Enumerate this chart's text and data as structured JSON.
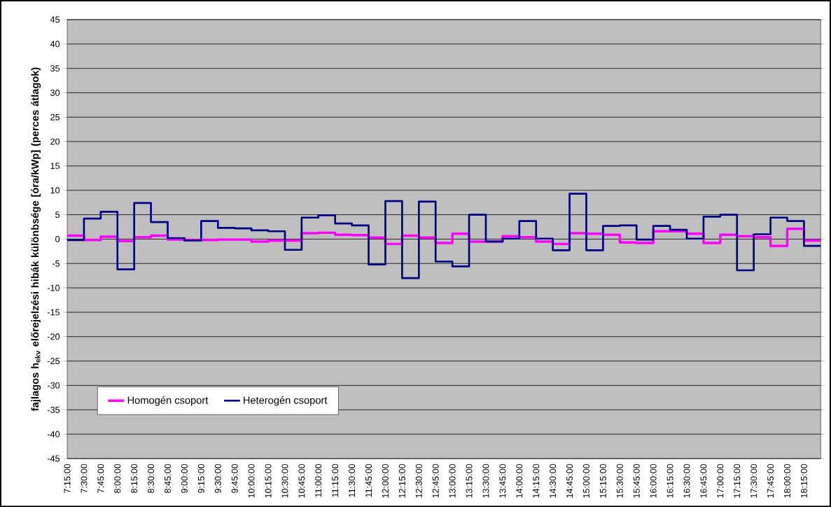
{
  "chart_data": {
    "type": "step",
    "ylabel": "fajlagos h$_{ekv}$ előrejelzési hibák különbsége  [óra/kWp] (perces átlagok)",
    "x": [
      7.25,
      7.5,
      7.75,
      8.0,
      8.25,
      8.5,
      8.75,
      9.0,
      9.25,
      9.5,
      9.75,
      10.0,
      10.25,
      10.5,
      10.75,
      11.0,
      11.25,
      11.5,
      11.75,
      12.0,
      12.25,
      12.5,
      12.75,
      13.0,
      13.25,
      13.5,
      13.75,
      14.0,
      14.25,
      14.5,
      14.75,
      15.0,
      15.25,
      15.5,
      15.75,
      16.0,
      16.25,
      16.5,
      16.75,
      17.0,
      17.25,
      17.5,
      17.75,
      18.0,
      18.25,
      18.5
    ],
    "xlim": [
      7.25,
      18.5
    ],
    "xticks": [
      {
        "value": 7.25,
        "label": "7:15:00"
      },
      {
        "value": 7.5,
        "label": "7:30:00"
      },
      {
        "value": 7.75,
        "label": "7:45:00"
      },
      {
        "value": 8.0,
        "label": "8:00:00"
      },
      {
        "value": 8.25,
        "label": "8:15:00"
      },
      {
        "value": 8.5,
        "label": "8:30:00"
      },
      {
        "value": 8.75,
        "label": "8:45:00"
      },
      {
        "value": 9.0,
        "label": "9:00:00"
      },
      {
        "value": 9.25,
        "label": "9:15:00"
      },
      {
        "value": 9.5,
        "label": "9:30:00"
      },
      {
        "value": 9.75,
        "label": "9:45:00"
      },
      {
        "value": 10.0,
        "label": "10:00:00"
      },
      {
        "value": 10.25,
        "label": "10:15:00"
      },
      {
        "value": 10.5,
        "label": "10:30:00"
      },
      {
        "value": 10.75,
        "label": "10:45:00"
      },
      {
        "value": 11.0,
        "label": "11:00:00"
      },
      {
        "value": 11.25,
        "label": "11:15:00"
      },
      {
        "value": 11.5,
        "label": "11:30:00"
      },
      {
        "value": 11.75,
        "label": "11:45:00"
      },
      {
        "value": 12.0,
        "label": "12:00:00"
      },
      {
        "value": 12.25,
        "label": "12:15:00"
      },
      {
        "value": 12.5,
        "label": "12:30:00"
      },
      {
        "value": 12.75,
        "label": "12:45:00"
      },
      {
        "value": 13.0,
        "label": "13:00:00"
      },
      {
        "value": 13.25,
        "label": "13:15:00"
      },
      {
        "value": 13.5,
        "label": "13:30:00"
      },
      {
        "value": 13.75,
        "label": "13:45:00"
      },
      {
        "value": 14.0,
        "label": "14:00:00"
      },
      {
        "value": 14.25,
        "label": "14:15:00"
      },
      {
        "value": 14.5,
        "label": "14:30:00"
      },
      {
        "value": 14.75,
        "label": "14:45:00"
      },
      {
        "value": 15.0,
        "label": "15:00:00"
      },
      {
        "value": 15.25,
        "label": "15:15:00"
      },
      {
        "value": 15.5,
        "label": "15:30:00"
      },
      {
        "value": 15.75,
        "label": "15:45:00"
      },
      {
        "value": 16.0,
        "label": "16:00:00"
      },
      {
        "value": 16.25,
        "label": "16:15:00"
      },
      {
        "value": 16.5,
        "label": "16:30:00"
      },
      {
        "value": 16.75,
        "label": "16:45:00"
      },
      {
        "value": 17.0,
        "label": "17:00:00"
      },
      {
        "value": 17.25,
        "label": "17:15:00"
      },
      {
        "value": 17.5,
        "label": "17:30:00"
      },
      {
        "value": 17.75,
        "label": "17:45:00"
      },
      {
        "value": 18.0,
        "label": "18:00:00"
      },
      {
        "value": 18.25,
        "label": "18:15:00"
      }
    ],
    "ylim": [
      -45,
      45
    ],
    "yticks": [
      -45,
      -40,
      -35,
      -30,
      -25,
      -20,
      -15,
      -10,
      -5,
      0,
      5,
      10,
      15,
      20,
      25,
      30,
      35,
      40,
      45
    ],
    "grid": "y",
    "legend": "bottom left",
    "line_style": "solid",
    "series": [
      {
        "name": "Homogén csoport",
        "color": "#ff00ff",
        "values": [
          0.7,
          -0.2,
          0.5,
          -0.4,
          0.4,
          0.7,
          -0.1,
          -0.2,
          -0.2,
          -0.1,
          -0.1,
          -0.5,
          -0.3,
          -0.3,
          1.2,
          1.3,
          0.9,
          0.8,
          0.3,
          -1.0,
          0.7,
          0.3,
          -0.8,
          1.1,
          -0.5,
          -0.5,
          0.6,
          0.4,
          -0.5,
          -1.0,
          1.2,
          1.1,
          0.9,
          -0.7,
          -0.8,
          1.6,
          1.6,
          1.1,
          -0.8,
          0.9,
          0.6,
          0.4,
          -1.4,
          2.1,
          -0.3,
          -0.3
        ]
      },
      {
        "name": "Heterogén csoport",
        "color": "#000080",
        "values": [
          -0.2,
          4.2,
          5.6,
          -6.2,
          7.4,
          3.5,
          0.2,
          -0.3,
          3.7,
          2.3,
          2.2,
          1.8,
          1.6,
          -2.2,
          4.4,
          4.9,
          3.2,
          2.8,
          -5.2,
          7.8,
          -8.0,
          7.7,
          -4.6,
          -5.6,
          5.0,
          -0.5,
          0.1,
          3.7,
          0.1,
          -2.3,
          9.3,
          -2.3,
          2.7,
          2.8,
          -0.1,
          2.7,
          1.9,
          0.1,
          4.6,
          5.0,
          -6.4,
          1.0,
          4.4,
          3.7,
          -1.4,
          -1.4
        ]
      }
    ]
  }
}
